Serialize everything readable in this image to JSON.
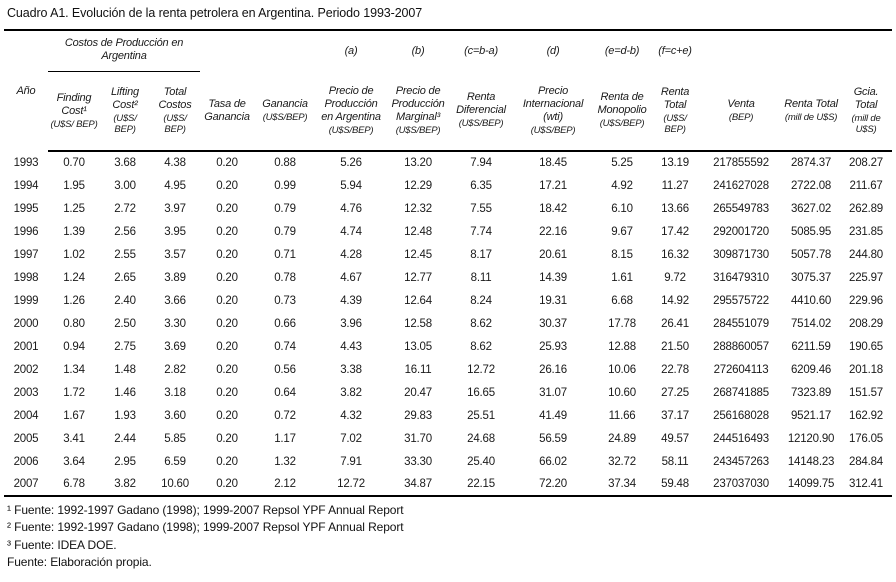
{
  "title": "Cuadro A1. Evolución de la renta petrolera en Argentina. Periodo 1993-2007",
  "table": {
    "group_header": {
      "costos_label": "Costos de Producción en Argentina",
      "formulas": [
        "(a)",
        "(b)",
        "(c=b-a)",
        "(d)",
        "(e=d-b)",
        "(f=c+e)"
      ]
    },
    "columns": [
      {
        "name": "Año",
        "unit": ""
      },
      {
        "name": "Finding Cost¹",
        "unit": "(U$S/ BEP)"
      },
      {
        "name": "Lifting Cost²",
        "unit": "(U$S/ BEP)"
      },
      {
        "name": "Total Costos",
        "unit": "(U$S/ BEP)"
      },
      {
        "name": "Tasa de Ganancia",
        "unit": ""
      },
      {
        "name": "Ganancia",
        "unit": "(U$S/BEP)"
      },
      {
        "name": "Precio de Producción en Argentina",
        "unit": "(U$S/BEP)"
      },
      {
        "name": "Precio de Producción Marginal³",
        "unit": "(U$S/BEP)"
      },
      {
        "name": "Renta Diferencial",
        "unit": "(U$S/BEP)"
      },
      {
        "name": "Precio Internacional (wti)",
        "unit": "(U$S/BEP)"
      },
      {
        "name": "Renta de Monopolio",
        "unit": "(U$S/BEP)"
      },
      {
        "name": "Renta Total",
        "unit": "(U$S/ BEP)"
      },
      {
        "name": "Venta",
        "unit": "(BEP)"
      },
      {
        "name": "Renta Total",
        "unit": "(mill de U$S)"
      },
      {
        "name": "Gcia. Total",
        "unit": "(mill de U$S)"
      }
    ],
    "rows": [
      [
        "1993",
        "0.70",
        "3.68",
        "4.38",
        "0.20",
        "0.88",
        "5.26",
        "13.20",
        "7.94",
        "18.45",
        "5.25",
        "13.19",
        "217855592",
        "2874.37",
        "208.27"
      ],
      [
        "1994",
        "1.95",
        "3.00",
        "4.95",
        "0.20",
        "0.99",
        "5.94",
        "12.29",
        "6.35",
        "17.21",
        "4.92",
        "11.27",
        "241627028",
        "2722.08",
        "211.67"
      ],
      [
        "1995",
        "1.25",
        "2.72",
        "3.97",
        "0.20",
        "0.79",
        "4.76",
        "12.32",
        "7.55",
        "18.42",
        "6.10",
        "13.66",
        "265549783",
        "3627.02",
        "262.89"
      ],
      [
        "1996",
        "1.39",
        "2.56",
        "3.95",
        "0.20",
        "0.79",
        "4.74",
        "12.48",
        "7.74",
        "22.16",
        "9.67",
        "17.42",
        "292001720",
        "5085.95",
        "231.85"
      ],
      [
        "1997",
        "1.02",
        "2.55",
        "3.57",
        "0.20",
        "0.71",
        "4.28",
        "12.45",
        "8.17",
        "20.61",
        "8.15",
        "16.32",
        "309871730",
        "5057.78",
        "244.80"
      ],
      [
        "1998",
        "1.24",
        "2.65",
        "3.89",
        "0.20",
        "0.78",
        "4.67",
        "12.77",
        "8.11",
        "14.39",
        "1.61",
        "9.72",
        "316479310",
        "3075.37",
        "225.97"
      ],
      [
        "1999",
        "1.26",
        "2.40",
        "3.66",
        "0.20",
        "0.73",
        "4.39",
        "12.64",
        "8.24",
        "19.31",
        "6.68",
        "14.92",
        "295575722",
        "4410.60",
        "229.96"
      ],
      [
        "2000",
        "0.80",
        "2.50",
        "3.30",
        "0.20",
        "0.66",
        "3.96",
        "12.58",
        "8.62",
        "30.37",
        "17.78",
        "26.41",
        "284551079",
        "7514.02",
        "208.29"
      ],
      [
        "2001",
        "0.94",
        "2.75",
        "3.69",
        "0.20",
        "0.74",
        "4.43",
        "13.05",
        "8.62",
        "25.93",
        "12.88",
        "21.50",
        "288860057",
        "6211.59",
        "190.65"
      ],
      [
        "2002",
        "1.34",
        "1.48",
        "2.82",
        "0.20",
        "0.56",
        "3.38",
        "16.11",
        "12.72",
        "26.16",
        "10.06",
        "22.78",
        "272604113",
        "6209.46",
        "201.18"
      ],
      [
        "2003",
        "1.72",
        "1.46",
        "3.18",
        "0.20",
        "0.64",
        "3.82",
        "20.47",
        "16.65",
        "31.07",
        "10.60",
        "27.25",
        "268741885",
        "7323.89",
        "151.57"
      ],
      [
        "2004",
        "1.67",
        "1.93",
        "3.60",
        "0.20",
        "0.72",
        "4.32",
        "29.83",
        "25.51",
        "41.49",
        "11.66",
        "37.17",
        "256168028",
        "9521.17",
        "162.92"
      ],
      [
        "2005",
        "3.41",
        "2.44",
        "5.85",
        "0.20",
        "1.17",
        "7.02",
        "31.70",
        "24.68",
        "56.59",
        "24.89",
        "49.57",
        "244516493",
        "12120.90",
        "176.05"
      ],
      [
        "2006",
        "3.64",
        "2.95",
        "6.59",
        "0.20",
        "1.32",
        "7.91",
        "33.30",
        "25.40",
        "66.02",
        "32.72",
        "58.11",
        "243457263",
        "14148.23",
        "284.84"
      ],
      [
        "2007",
        "6.78",
        "3.82",
        "10.60",
        "0.20",
        "2.12",
        "12.72",
        "34.87",
        "22.15",
        "72.20",
        "37.34",
        "59.48",
        "237037030",
        "14099.75",
        "312.41"
      ]
    ]
  },
  "footnotes": [
    "¹ Fuente: 1992-1997 Gadano (1998); 1999-2007 Repsol YPF Annual Report",
    "² Fuente: 1992-1997 Gadano (1998); 1999-2007 Repsol YPF Annual Report",
    "³ Fuente: IDEA DOE.",
    "Fuente: Elaboración propia."
  ]
}
